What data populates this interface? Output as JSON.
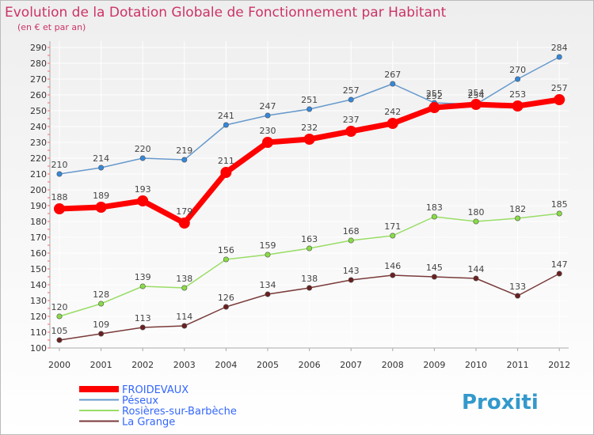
{
  "chart_data": {
    "type": "line",
    "title": "Evolution de la Dotation Globale de Fonctionnement par Habitant",
    "subtitle": "(en € et par an)",
    "xlabel": "",
    "ylabel": "",
    "ylim": [
      100,
      290
    ],
    "ytick_step": 10,
    "grid": true,
    "categories": [
      "2000",
      "2001",
      "2002",
      "2003",
      "2004",
      "2005",
      "2006",
      "2007",
      "2008",
      "2009",
      "2010",
      "2011",
      "2012"
    ],
    "series": [
      {
        "name": "FROIDEVAUX",
        "color": "#ff0000",
        "marker_color": "#ff0000",
        "label_color": "#444444",
        "emphasis": true,
        "values": [
          188,
          189,
          193,
          179,
          211,
          230,
          232,
          237,
          242,
          252,
          254,
          253,
          257
        ]
      },
      {
        "name": "Péseux",
        "color": "#6699cc",
        "marker_color": "#3388dd",
        "label_color": "#444444",
        "emphasis": false,
        "values": [
          210,
          214,
          220,
          219,
          241,
          247,
          251,
          257,
          267,
          255,
          254,
          270,
          284
        ]
      },
      {
        "name": "Rosières-sur-Barbèche",
        "color": "#99dd66",
        "marker_color": "#88dd44",
        "label_color": "#444444",
        "emphasis": false,
        "values": [
          120,
          128,
          139,
          138,
          156,
          159,
          163,
          168,
          171,
          183,
          180,
          182,
          185
        ]
      },
      {
        "name": "La Grange",
        "color": "#7a3a3a",
        "marker_color": "#6a2020",
        "label_color": "#444444",
        "emphasis": false,
        "values": [
          105,
          109,
          113,
          114,
          126,
          134,
          138,
          143,
          146,
          145,
          144,
          133,
          147
        ]
      }
    ],
    "legend_position": "bottom-left",
    "colors": {
      "title": "#cc3366",
      "background_top": "#eeeeee",
      "background_bottom": "#ffffff",
      "grid": "#ffffff",
      "axis": "#aaaaaa",
      "legend_text": "#3366ff"
    }
  },
  "branding": {
    "logo_text": "Proxiti"
  }
}
